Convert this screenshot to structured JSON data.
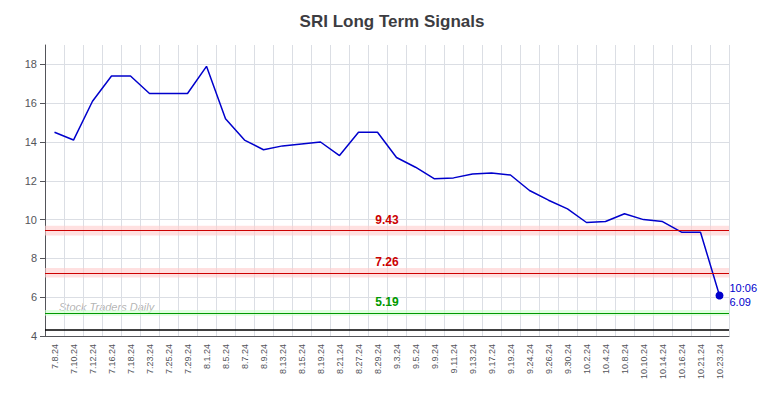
{
  "chart_data": {
    "type": "line",
    "title": "SRI Long Term Signals",
    "categories": [
      "7.8.24",
      "7.10.24",
      "7.12.24",
      "7.16.24",
      "7.18.24",
      "7.23.24",
      "7.25.24",
      "7.29.24",
      "8.1.24",
      "8.5.24",
      "8.7.24",
      "8.9.24",
      "8.13.24",
      "8.15.24",
      "8.19.24",
      "8.21.24",
      "8.27.24",
      "8.29.24",
      "9.3.24",
      "9.5.24",
      "9.9.24",
      "9.11.24",
      "9.13.24",
      "9.17.24",
      "9.19.24",
      "9.24.24",
      "9.26.24",
      "9.30.24",
      "10.2.24",
      "10.4.24",
      "10.8.24",
      "10.10.24",
      "10.14.24",
      "10.16.24",
      "10.21.24",
      "10.23.24"
    ],
    "values": [
      14.5,
      14.1,
      16.1,
      17.4,
      17.4,
      16.5,
      16.5,
      16.5,
      17.9,
      15.2,
      14.1,
      13.6,
      13.8,
      13.9,
      14.0,
      13.3,
      14.5,
      14.5,
      13.2,
      12.7,
      12.1,
      12.15,
      12.35,
      12.4,
      12.3,
      11.5,
      11.0,
      10.55,
      9.85,
      9.9,
      10.3,
      10.0,
      9.9,
      9.35,
      9.35,
      6.09
    ],
    "color": "#0000cc",
    "marker": "last",
    "ylim": [
      4,
      19
    ],
    "yticks": [
      4,
      6,
      8,
      10,
      12,
      14,
      16,
      18
    ],
    "grid": true,
    "reference_lines": [
      {
        "value": 9.43,
        "label": "9.43",
        "color": "#cc0000",
        "band": [
          9.18,
          9.68
        ],
        "band_color": "#ffcccc"
      },
      {
        "value": 7.26,
        "label": "7.26",
        "color": "#cc0000",
        "band": [
          7.01,
          7.51
        ],
        "band_color": "#ffcccc"
      },
      {
        "value": 5.19,
        "label": "5.19",
        "color": "#009900",
        "band": [
          5.04,
          5.34
        ],
        "band_color": "#ccffcc"
      },
      {
        "value": 4.3,
        "color": "#000000"
      }
    ],
    "annotations": [
      "10:06",
      "6.09"
    ],
    "watermark": "Stock Traders Daily"
  }
}
